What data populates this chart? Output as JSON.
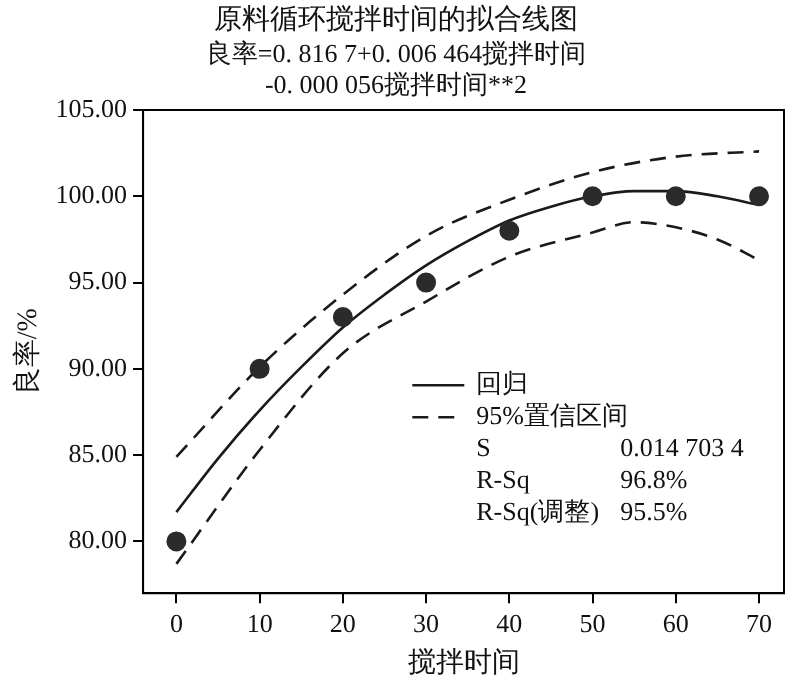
{
  "chart_data": {
    "type": "line",
    "title": "原料循环搅拌时间的拟合线图",
    "subtitle": "良率=0. 816 7+0. 006 464搅拌时间\n-0. 000 056搅拌时间**2",
    "xlabel": "搅拌时间",
    "ylabel": "良率/%",
    "xlim": [
      -4,
      73
    ],
    "xticks": [
      0,
      10,
      20,
      30,
      40,
      50,
      60,
      70
    ],
    "ylim": [
      77,
      105
    ],
    "yticks": [
      {
        "value": 80,
        "label": "80.00"
      },
      {
        "value": 85,
        "label": "85.00"
      },
      {
        "value": 90,
        "label": "90.00"
      },
      {
        "value": 95,
        "label": "95.00"
      },
      {
        "value": 100,
        "label": "100.00"
      },
      {
        "value": 105,
        "label": "105.00"
      }
    ],
    "grid": false,
    "legend": "bottom right",
    "series": [
      {
        "type": "scatter",
        "color": "#2b2b2b",
        "marker": "circle",
        "x": [
          0,
          10,
          20,
          30,
          40,
          50,
          60,
          70
        ],
        "values": [
          80,
          90,
          93,
          95,
          98,
          100,
          100,
          100
        ]
      },
      {
        "name": "回归",
        "color": "#1a1a1a",
        "line_style": "solid",
        "marker": "none",
        "x": [
          0,
          5,
          10,
          15,
          20,
          25,
          30,
          35,
          40,
          45,
          50,
          55,
          60,
          65,
          70
        ],
        "values": [
          81.7,
          84.8,
          87.6,
          90.1,
          92.4,
          94.3,
          96.0,
          97.4,
          98.6,
          99.4,
          100.0,
          100.3,
          100.3,
          100.0,
          99.5
        ]
      },
      {
        "name": "95%置信区间",
        "color": "#1a1a1a",
        "line_style": "dashed",
        "marker": "none",
        "x": [
          0,
          10,
          20,
          30,
          40,
          50,
          60,
          70
        ],
        "values": [
          84.9,
          90.1,
          94.3,
          97.7,
          99.8,
          101.4,
          102.3,
          102.6
        ]
      },
      {
        "color": "#1a1a1a",
        "line_style": "dashed",
        "marker": "none",
        "x": [
          0,
          10,
          20,
          30,
          40,
          50,
          55,
          60,
          65,
          70
        ],
        "values": [
          78.7,
          85.3,
          90.9,
          93.9,
          96.5,
          97.9,
          98.5,
          98.2,
          97.5,
          96.3
        ]
      }
    ],
    "annotations": [
      "S 0.014 703 4",
      "R-Sq 96.8%",
      "R-Sq(调整) 95.5%"
    ]
  }
}
